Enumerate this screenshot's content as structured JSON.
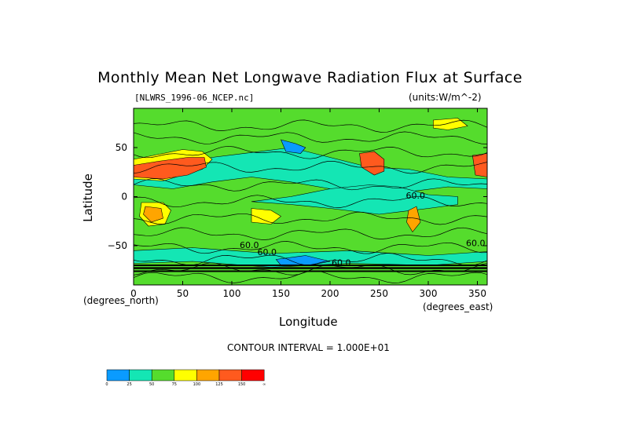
{
  "chart_data": {
    "type": "heatmap",
    "title": "Monthly Mean Net Longwave Radiation Flux at Surface",
    "subtitle_left": "[NLWRS_1996-06_NCEP.nc]",
    "subtitle_right": "(units:W/m^-2)",
    "xlabel": "Longitude",
    "ylabel": "Latitude",
    "x_unit_label": "(degrees_north)",
    "x_unit_label_right": "(degrees_east)",
    "xlim": [
      0,
      360
    ],
    "ylim": [
      -90,
      90
    ],
    "xticks": [
      0,
      50,
      100,
      150,
      200,
      250,
      300,
      350
    ],
    "yticks": [
      50,
      0,
      -50
    ],
    "ytick_labels": [
      "50",
      "0",
      "−50"
    ],
    "contour_interval_text": "CONTOUR INTERVAL = 1.000E+01",
    "contour_labels": [
      "60.0",
      "60.0",
      "60.0",
      "60.0",
      "60.0"
    ],
    "colorbar": {
      "levels": [
        "0",
        "25",
        "50",
        "75",
        "100",
        "125",
        "150",
        "∞"
      ],
      "colors": [
        "#0a9bff",
        "#14e6b4",
        "#55dc2d",
        "#ffff00",
        "#ffa500",
        "#ff5a1e",
        "#ff0000"
      ]
    },
    "grid": false
  }
}
